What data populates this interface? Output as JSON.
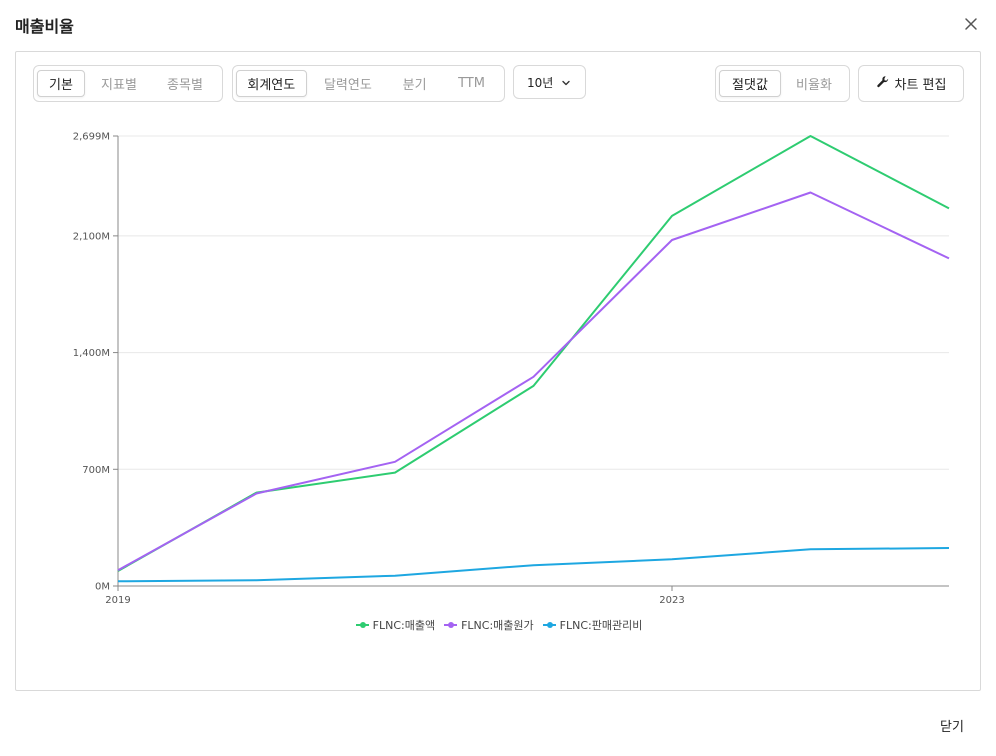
{
  "dialog": {
    "title": "매출비율",
    "close_icon": "close-icon",
    "footer_close_label": "닫기"
  },
  "toolbar": {
    "view_group": [
      {
        "label": "기본",
        "active": true
      },
      {
        "label": "지표별",
        "active": false
      },
      {
        "label": "종목별",
        "active": false
      }
    ],
    "period_group": [
      {
        "label": "회계연도",
        "active": true
      },
      {
        "label": "달력연도",
        "active": false
      },
      {
        "label": "분기",
        "active": false
      },
      {
        "label": "TTM",
        "active": false
      }
    ],
    "range_select": {
      "value": "10년",
      "icon": "chevron-down-icon"
    },
    "value_mode_group": [
      {
        "label": "절댓값",
        "active": true
      },
      {
        "label": "비율화",
        "active": false
      }
    ],
    "edit_chart": {
      "label": "차트 편집",
      "icon": "wrench-icon"
    }
  },
  "chart_data": {
    "type": "line",
    "x": [
      2019,
      2020,
      2021,
      2022,
      2023,
      2024,
      2025
    ],
    "x_tick_labels": [
      "2019",
      "2023"
    ],
    "x_tick_values": [
      2019,
      2023
    ],
    "y_ticks": [
      0,
      700,
      1400,
      2100,
      2699
    ],
    "y_tick_labels": [
      "0M",
      "700M",
      "1,400M",
      "2,100M",
      "2,699M"
    ],
    "ylim": [
      0,
      2699
    ],
    "grid": true,
    "legend_position": "bottom",
    "series": [
      {
        "name": "FLNC:매출액",
        "color": "#2ecc71",
        "values": [
          90,
          560,
          680,
          1200,
          2220,
          2699,
          2265
        ]
      },
      {
        "name": "FLNC:매출원가",
        "color": "#a463f2",
        "values": [
          95,
          555,
          745,
          1255,
          2075,
          2360,
          1965
        ]
      },
      {
        "name": "FLNC:판매관리비",
        "color": "#1ea7e1",
        "values": [
          28,
          35,
          62,
          125,
          160,
          220,
          228
        ]
      }
    ]
  }
}
